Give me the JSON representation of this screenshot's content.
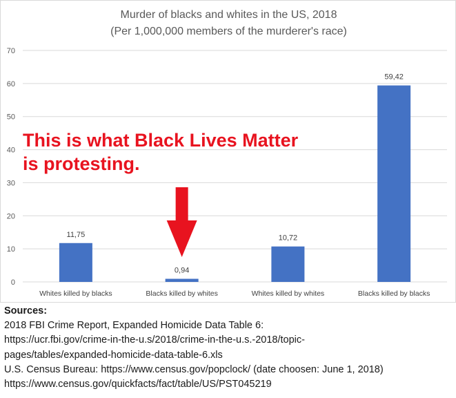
{
  "chart_data": {
    "type": "bar",
    "title": "Murder of blacks and whites in the US, 2018",
    "subtitle": "(Per 1,000,000 members of the murderer's race)",
    "categories": [
      "Whites killed by blacks",
      "Blacks killed by whites",
      "Whites killed by whites",
      "Blacks killed by blacks"
    ],
    "values": [
      11.75,
      0.94,
      10.72,
      59.42
    ],
    "data_labels": [
      "11,75",
      "0,94",
      "10,72",
      "59,42"
    ],
    "ylim": [
      0,
      70
    ],
    "yticks": [
      "0",
      "10",
      "20",
      "30",
      "40",
      "50",
      "60",
      "70"
    ],
    "grid": true,
    "bar_color": "#4472c4",
    "grid_color": "#d9d9d9"
  },
  "annotation": {
    "line1": "This is what Black Lives Matter",
    "line2": "is protesting.",
    "color": "#e8131f",
    "arrow_icon": "down-arrow-icon",
    "points_to": "Blacks killed by whites"
  },
  "sources": {
    "heading": "Sources:",
    "lines": [
      "2018 FBI Crime Report, Expanded Homicide Data Table 6:",
      "https://ucr.fbi.gov/crime-in-the-u.s/2018/crime-in-the-u.s.-2018/topic-",
      "pages/tables/expanded-homicide-data-table-6.xls",
      "U.S. Census Bureau: https://www.census.gov/popclock/ (date choosen: June 1, 2018)",
      "https://www.census.gov/quickfacts/fact/table/US/PST045219"
    ]
  }
}
